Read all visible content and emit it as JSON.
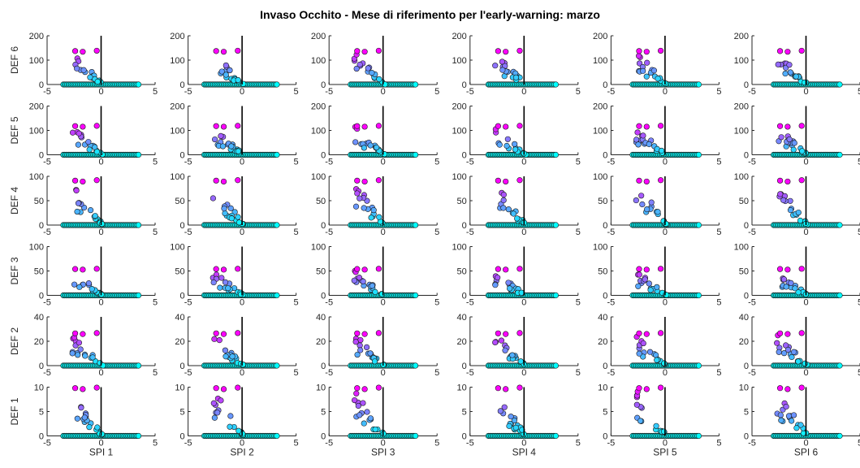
{
  "title": "Invaso Occhito - Mese di riferimento per l'early-warning: marzo",
  "chart_data": {
    "type": "scatter",
    "grid": false,
    "x_axis_labels": [
      "SPI 1",
      "SPI 2",
      "SPI 3",
      "SPI 4",
      "SPI 5",
      "SPI 6"
    ],
    "y_axis_labels": [
      "DEF 6",
      "DEF 5",
      "DEF 4",
      "DEF 3",
      "DEF 2",
      "DEF 1"
    ],
    "xlim": [
      -5,
      5
    ],
    "xticks": [
      -5,
      0,
      5
    ],
    "vertical_reference_line_x": 0,
    "marker_colormap": [
      "#00ffff",
      "#ff00ff"
    ],
    "rows": [
      {
        "ylabel": "DEF 6",
        "ylim": [
          0,
          200
        ],
        "yticks": [
          0,
          100,
          200
        ],
        "max_deficit": 140
      },
      {
        "ylabel": "DEF 5",
        "ylim": [
          0,
          200
        ],
        "yticks": [
          0,
          100,
          200
        ],
        "max_deficit": 120
      },
      {
        "ylabel": "DEF 4",
        "ylim": [
          0,
          100
        ],
        "yticks": [
          0,
          50,
          100
        ],
        "max_deficit": 93
      },
      {
        "ylabel": "DEF 3",
        "ylim": [
          0,
          100
        ],
        "yticks": [
          0,
          50,
          100
        ],
        "max_deficit": 55
      },
      {
        "ylabel": "DEF 2",
        "ylim": [
          0,
          40
        ],
        "yticks": [
          0,
          20,
          40
        ],
        "max_deficit": 27
      },
      {
        "ylabel": "DEF 1",
        "ylim": [
          0,
          10
        ],
        "yticks": [
          0,
          5,
          10
        ],
        "max_deficit": 10
      }
    ],
    "columns": [
      {
        "xlabel": "SPI 1",
        "spi_range_zero_deficit": [
          -3.5,
          3.5
        ]
      },
      {
        "xlabel": "SPI 2",
        "spi_range_zero_deficit": [
          -3.5,
          3.3
        ]
      },
      {
        "xlabel": "SPI 3",
        "spi_range_zero_deficit": [
          -3.0,
          3.0
        ]
      },
      {
        "xlabel": "SPI 4",
        "spi_range_zero_deficit": [
          -3.3,
          3.0
        ]
      },
      {
        "xlabel": "SPI 5",
        "spi_range_zero_deficit": [
          -3.0,
          3.2
        ]
      },
      {
        "xlabel": "SPI 6",
        "spi_range_zero_deficit": [
          -3.0,
          3.2
        ]
      }
    ],
    "highlight_points_sample": [
      {
        "panel": "DEF 1 vs SPI 1",
        "x": -2.5,
        "y": 10
      },
      {
        "panel": "DEF 1 vs SPI 1",
        "x": -1.8,
        "y": 10
      },
      {
        "panel": "DEF 1 vs SPI 1",
        "x": -0.3,
        "y": 10
      },
      {
        "panel": "DEF 2 vs SPI 1",
        "x": -2.5,
        "y": 26
      },
      {
        "panel": "DEF 2 vs SPI 1",
        "x": -0.3,
        "y": 27
      },
      {
        "panel": "DEF 6 vs SPI 1",
        "x": -2.5,
        "y": 140
      },
      {
        "panel": "DEF 6 vs SPI 1",
        "x": -1.5,
        "y": 135
      },
      {
        "panel": "DEF 6 vs SPI 1",
        "x": -0.3,
        "y": 138
      }
    ]
  }
}
